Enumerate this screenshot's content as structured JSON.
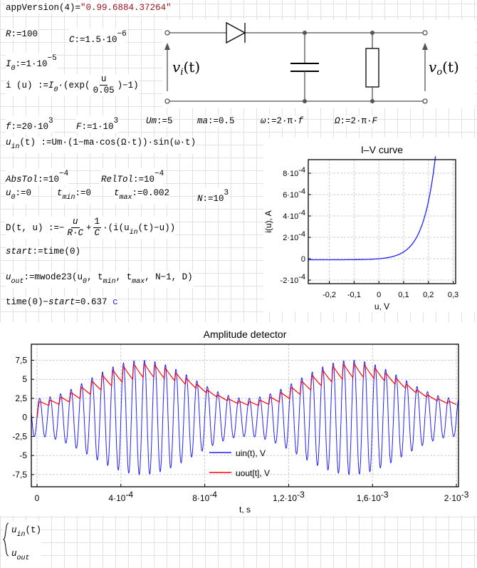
{
  "worksheet": {
    "app_version": {
      "lhs": "appVersion",
      "arg": "(4)",
      "eq": "=",
      "value": "\"0.99.6884.37264\""
    },
    "R": {
      "name": "R",
      "def": ":=100"
    },
    "C": {
      "name": "C",
      "def": ":=1.5·10",
      "exp": "−6"
    },
    "I0": {
      "name": "I",
      "sub": "0",
      "def": ":=1·10",
      "exp": "−5"
    },
    "i_def": {
      "lhs": "i (u) :=",
      "I": "I",
      "sub": "0",
      "mid": "·(exp(",
      "num": "u",
      "den": "0.05",
      "tail": ")−1)"
    },
    "f": {
      "name": "f",
      "def": ":=20·10",
      "exp": "3"
    },
    "F": {
      "name": "F",
      "def": ":=1·10",
      "exp": "3"
    },
    "Um": {
      "name": "Um",
      "def": ":=5"
    },
    "ma": {
      "name": "ma",
      "def": ":=0.5"
    },
    "omega": {
      "name": "ω",
      "def": ":=2·π·",
      "var": "f"
    },
    "Omega": {
      "name": "Ω",
      "def": ":=2·π·",
      "var": "F"
    },
    "uin_def": {
      "name": "u",
      "sub": "in",
      "rest": "(t) :=Um·(1−ma·cos(Ω·t))·sin(ω·t)"
    },
    "AbsTol": {
      "name": "AbsTol",
      "def": ":=10",
      "exp": "−4"
    },
    "RelTol": {
      "name": "RelTol",
      "def": ":=10",
      "exp": "−4"
    },
    "u0": {
      "name": "u",
      "sub": "0",
      "def": ":=0"
    },
    "tmin": {
      "name": "t",
      "sub": "min",
      "def": ":=0"
    },
    "tmax": {
      "name": "t",
      "sub": "max",
      "def": ":=0.002"
    },
    "N": {
      "name": "N",
      "def": ":=10",
      "exp": "3"
    },
    "D_def": {
      "lhs": "D(t, u) :=−",
      "num1": "u",
      "den1": "R·C",
      "plus": "+",
      "num2": "1",
      "den2": "C",
      "mid": "·(i(u",
      "sub": "in",
      "tail": "(t)−u))"
    },
    "start": {
      "name": "start",
      "def": ":=time(0)"
    },
    "uout_def": {
      "name": "u",
      "sub": "out",
      "rest": ":=mwode23(u",
      "s1": "0",
      "c1": ", t",
      "s2": "min",
      "c2": ", t",
      "s3": "max",
      "tail": ", N−1, D)"
    },
    "elapsed": {
      "expr": "time(0)−",
      "var": "start",
      "eq": "=0.637",
      "unit": "c"
    },
    "bottom": {
      "line1": "u",
      "sub1": "in",
      "rest1": "(t)",
      "line2": "u",
      "sub2": "out"
    }
  },
  "circuit": {
    "input_label": "v",
    "input_sub": "i",
    "input_arg": "(t)",
    "output_label": "v",
    "output_sub": "o",
    "output_arg": "(t)"
  },
  "chart_data": [
    {
      "type": "line",
      "title": "I–V curve",
      "xlabel": "u, V",
      "ylabel": "i(u), A",
      "xlim": [
        -0.285,
        0.31
      ],
      "ylim": [
        -0.000233,
        0.000927
      ],
      "grid": true,
      "x_ticks": [
        "-0,2",
        "-0,1",
        "0",
        "0,1",
        "0,2",
        "0,3"
      ],
      "x_tick_values": [
        -0.2,
        -0.1,
        0,
        0.1,
        0.2,
        0.3
      ],
      "y_ticks": [
        {
          "m": "-2·10",
          "e": "-4",
          "v": -0.0002
        },
        {
          "m": "0",
          "e": "",
          "v": 0
        },
        {
          "m": "2·10",
          "e": "-4",
          "v": 0.0002
        },
        {
          "m": "4·10",
          "e": "-4",
          "v": 0.0004
        },
        {
          "m": "6·10",
          "e": "-4",
          "v": 0.0006
        },
        {
          "m": "8·10",
          "e": "-4",
          "v": 0.0008
        }
      ],
      "series": [
        {
          "function": "i(u) = I0·(exp(u/0.05) − 1)",
          "color": "#2020ff"
        }
      ]
    },
    {
      "type": "line",
      "title": "Amplitude detector",
      "xlabel": "t, s",
      "ylabel": "",
      "xlim": [
        -2.7e-05,
        0.00201
      ],
      "ylim": [
        -9.1,
        9.6
      ],
      "grid": true,
      "legend": "bottom-center",
      "x_ticks": [
        {
          "m": "0",
          "e": "",
          "v": 0
        },
        {
          "m": "4·10",
          "e": "-4",
          "v": 0.0004
        },
        {
          "m": "8·10",
          "e": "-4",
          "v": 0.0008
        },
        {
          "m": "1,2·10",
          "e": "-3",
          "v": 0.0012
        },
        {
          "m": "1,6·10",
          "e": "-3",
          "v": 0.0016
        },
        {
          "m": "2·10",
          "e": "-3",
          "v": 0.002
        }
      ],
      "y_ticks": [
        "-7,5",
        "-5",
        "-2,5",
        "0",
        "2,5",
        "5",
        "7,5"
      ],
      "y_tick_values": [
        -7.5,
        -5,
        -2.5,
        0,
        2.5,
        5,
        7.5
      ],
      "series": [
        {
          "name": "uin(t), V",
          "color": "#2020ff",
          "peak_max": 7.5,
          "peak_min": 2.5
        },
        {
          "name": "uout[t], V",
          "color": "#ff0000",
          "max": 6.9,
          "min": 1.6
        }
      ]
    }
  ]
}
